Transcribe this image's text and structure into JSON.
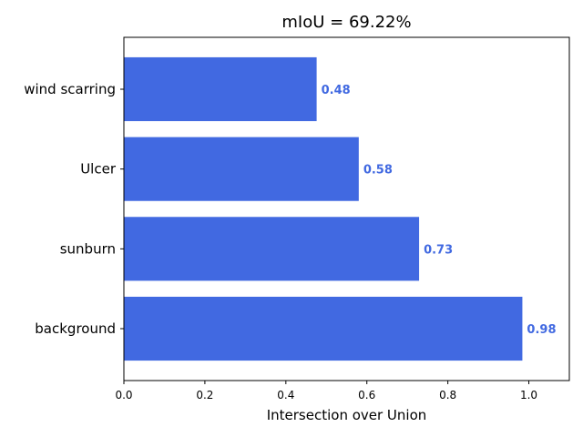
{
  "chart_data": {
    "type": "bar",
    "orientation": "horizontal",
    "title": "mIoU = 69.22%",
    "xlabel": "Intersection over Union",
    "ylabel": "",
    "categories": [
      "background",
      "sunburn",
      "Ulcer",
      "wind scarring"
    ],
    "values": [
      0.984,
      0.729,
      0.58,
      0.476
    ],
    "value_labels": [
      "0.98",
      "0.73",
      "0.58",
      "0.48"
    ],
    "xlim": [
      0,
      1.1
    ],
    "xticks": [
      0.0,
      0.2,
      0.4,
      0.6,
      0.8,
      1.0
    ],
    "xtick_labels": [
      "0.0",
      "0.2",
      "0.4",
      "0.6",
      "0.8",
      "1.0"
    ],
    "grid": false,
    "legend": "none",
    "colors": {
      "bar": "#4169e1",
      "value_label": "#4169e1",
      "axis": "#000000",
      "background": "#ffffff"
    }
  }
}
